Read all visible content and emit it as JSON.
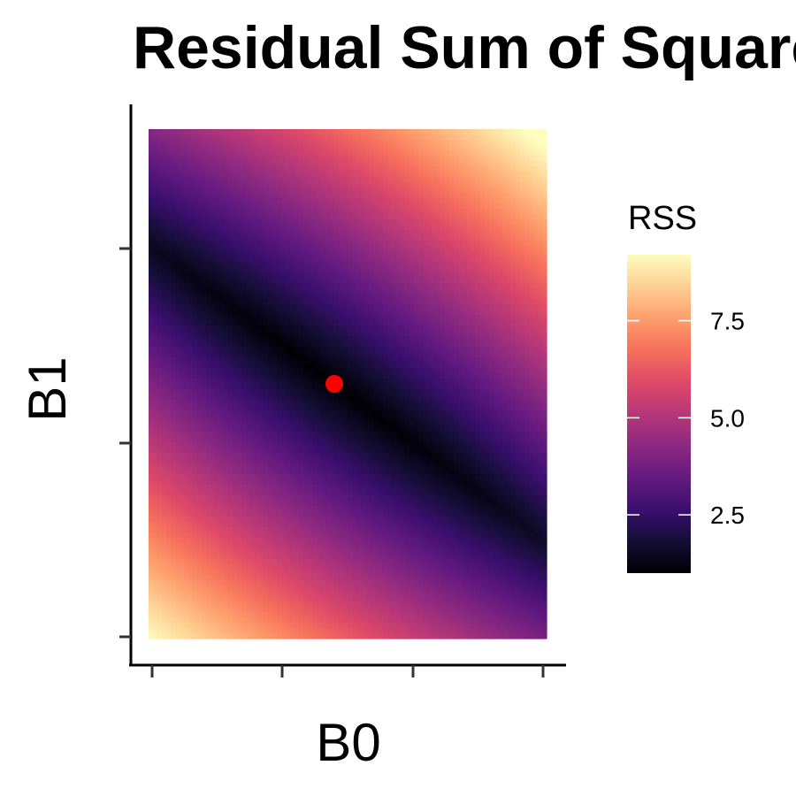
{
  "chart_data": {
    "type": "heatmap",
    "title": "Residual Sum of Squares",
    "xlabel": "B0",
    "ylabel": "B1",
    "x_tick_labels": [
      "",
      "",
      "",
      ""
    ],
    "y_tick_labels": [
      "",
      "",
      ""
    ],
    "minimum_point": {
      "color": "#ff0000"
    },
    "colorscale": "magma",
    "legend": {
      "title": "RSS",
      "range": [
        1.0,
        9.2
      ],
      "ticks": [
        2.5,
        5.0,
        7.5
      ],
      "tick_labels": [
        "2.5",
        "5.0",
        "7.5"
      ],
      "position": "right"
    },
    "grid": false
  }
}
